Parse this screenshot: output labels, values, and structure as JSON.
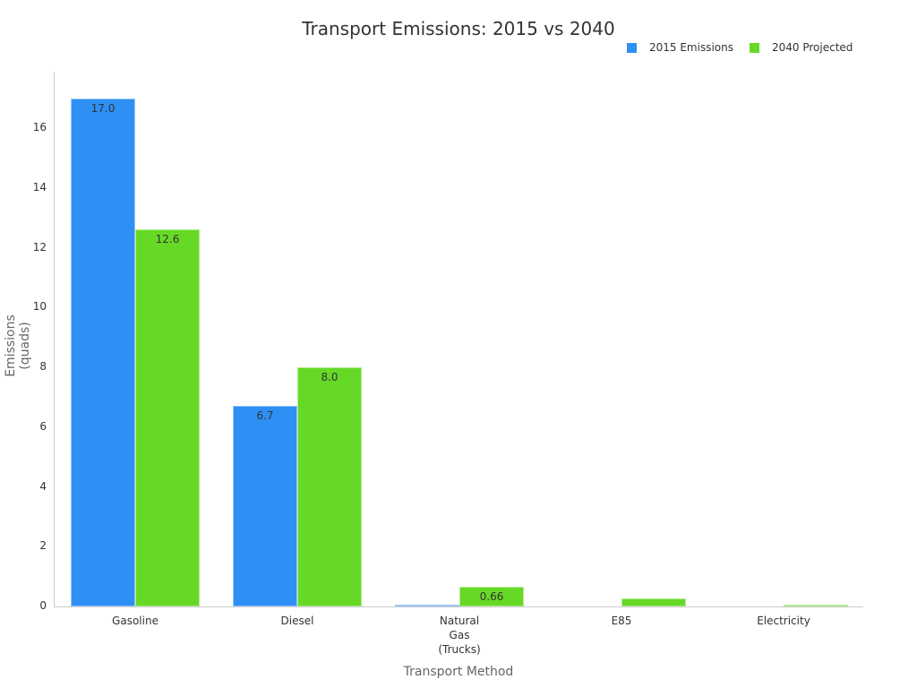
{
  "chart_data": {
    "type": "bar",
    "title": "Transport Emissions: 2015 vs 2040",
    "xlabel": "Transport Method",
    "ylabel": "Emissions (quads)",
    "categories": [
      "Gasoline",
      "Diesel",
      "Natural Gas (Trucks)",
      "E85",
      "Electricity"
    ],
    "series": [
      {
        "name": "2015 Emissions",
        "color": "#2e8ff5",
        "values": [
          17.0,
          6.7,
          0.05,
          0,
          0
        ]
      },
      {
        "name": "2040 Projected",
        "color": "#66d927",
        "values": [
          12.6,
          8.0,
          0.66,
          0.27,
          0.07
        ]
      }
    ],
    "ylim": [
      0,
      17.9
    ],
    "yticks": [
      0,
      2,
      4,
      6,
      8,
      10,
      12,
      14,
      16
    ],
    "legend_position": "top-right",
    "grid": false
  },
  "title": "Transport Emissions: 2015 vs 2040",
  "legend": [
    "2015 Emissions",
    "2040 Projected"
  ],
  "xlabel": "Transport Method",
  "ylabel": "Emissions (quads)"
}
